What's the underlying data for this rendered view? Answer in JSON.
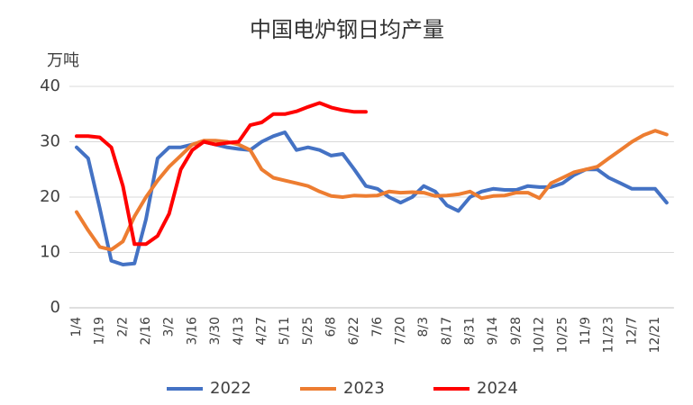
{
  "chart_data": {
    "type": "line",
    "title": "中国电炉钢日均产量",
    "y_label": "万吨",
    "categories": [
      "1/4",
      null,
      "1/19",
      null,
      "2/2",
      null,
      "2/16",
      null,
      "3/2",
      null,
      "3/16",
      null,
      "3/30",
      null,
      "4/13",
      null,
      "4/27",
      null,
      "5/11",
      null,
      "5/25",
      null,
      "6/8",
      null,
      "6/22",
      null,
      "7/6",
      null,
      "7/20",
      null,
      "8/3",
      null,
      "8/17",
      null,
      "8/31",
      null,
      "9/14",
      null,
      "9/28",
      null,
      "10/12",
      null,
      "10/25",
      null,
      "11/9",
      null,
      "11/23",
      null,
      "12/7",
      null,
      "12/21",
      null
    ],
    "series": [
      {
        "name": "2022",
        "color": "#4472c4",
        "values": [
          29,
          27,
          18,
          8.5,
          7.8,
          8,
          16,
          27,
          29,
          29,
          29.5,
          30,
          29.5,
          29,
          28.7,
          28.5,
          30,
          31,
          31.7,
          28.5,
          29,
          28.5,
          27.5,
          27.8,
          25,
          22,
          21.5,
          20,
          19,
          20,
          22,
          21,
          18.5,
          17.5,
          20,
          21,
          21.5,
          21.3,
          21.3,
          22,
          21.8,
          21.8,
          22.5,
          24,
          25,
          25,
          23.5,
          22.5,
          21.5,
          21.5,
          21.5,
          19
        ]
      },
      {
        "name": "2023",
        "color": "#ed7d31",
        "values": [
          17.3,
          14,
          11,
          10.5,
          12,
          16.5,
          20,
          23,
          25.5,
          27.5,
          29.5,
          30.2,
          30.2,
          30,
          29.5,
          28.5,
          25,
          23.5,
          23,
          22.5,
          22,
          21,
          20.2,
          20,
          20.3,
          20.2,
          20.3,
          21,
          20.8,
          20.9,
          20.8,
          20.2,
          20.3,
          20.5,
          21,
          19.8,
          20.2,
          20.3,
          20.8,
          20.8,
          19.8,
          22.5,
          23.5,
          24.5,
          25,
          25.5,
          27,
          28.5,
          30,
          31.2,
          32,
          31.3
        ]
      },
      {
        "name": "2024",
        "color": "#ff0000",
        "values": [
          31,
          31,
          30.8,
          29,
          22,
          11.5,
          11.5,
          13,
          17,
          25,
          28.5,
          30,
          29.5,
          29.8,
          30,
          33,
          33.5,
          35,
          35,
          35.5,
          36.3,
          37,
          36.2,
          35.7,
          35.4,
          35.4,
          null,
          null,
          null,
          null,
          null,
          null,
          null,
          null,
          null,
          null,
          null,
          null,
          null,
          null,
          null,
          null,
          null,
          null,
          null,
          null,
          null,
          null,
          null,
          null,
          null,
          null
        ]
      }
    ],
    "ylim": [
      0,
      40
    ],
    "yticks": [
      0,
      10,
      20,
      30,
      40
    ],
    "grid": true,
    "legend": "bottom"
  }
}
